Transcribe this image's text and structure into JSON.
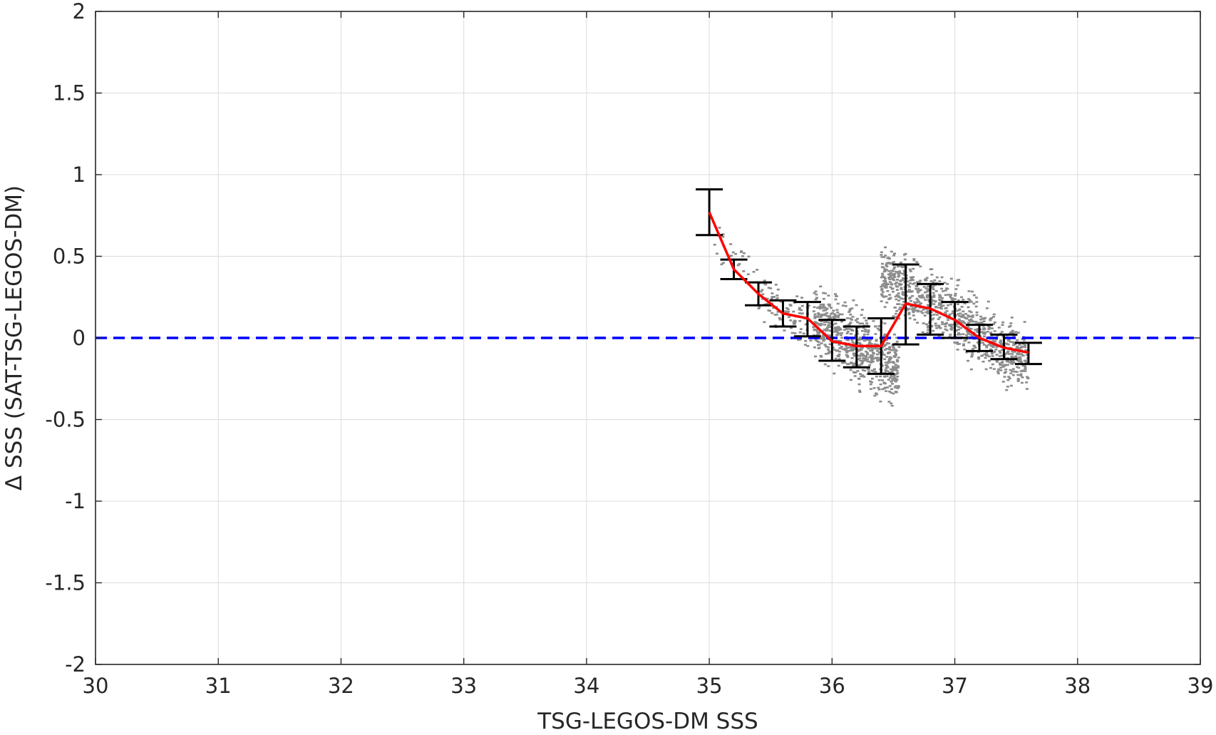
{
  "chart_data": {
    "type": "scatter",
    "xlabel": "TSG-LEGOS-DM SSS",
    "ylabel": "Δ SSS (SAT-TSG-LEGOS-DM)",
    "xlim": [
      30,
      39
    ],
    "ylim": [
      -2,
      2
    ],
    "xticks": [
      "30",
      "31",
      "32",
      "33",
      "34",
      "35",
      "36",
      "37",
      "38",
      "39"
    ],
    "yticks": [
      "2",
      "1.5",
      "1",
      "0.5",
      "0",
      "-0.5",
      "-1",
      "-1.5",
      "-2"
    ],
    "grid": true,
    "reference_line": {
      "y": 0,
      "style": "dashed",
      "color": "#0000ff"
    },
    "colors": {
      "scatter": "#8c8c8c",
      "mean_line": "#ff0000",
      "error_bars": "#000000",
      "reference": "#0000ff",
      "grid": "#dcdcdc"
    },
    "scatter_clusters": [
      {
        "x_range": [
          35.0,
          35.4
        ],
        "y_center": 0.5,
        "slope": -0.8,
        "spread": 0.08,
        "count": 25
      },
      {
        "x_range": [
          35.4,
          35.9
        ],
        "y_center": 0.15,
        "slope": -0.9,
        "spread": 0.08,
        "count": 110
      },
      {
        "x_range": [
          35.85,
          36.55
        ],
        "y_center": -0.05,
        "slope": -0.9,
        "spread": 0.13,
        "count": 650
      },
      {
        "x_range": [
          36.4,
          37.6
        ],
        "y_center": 0.12,
        "slope": -0.9,
        "spread": 0.12,
        "count": 900
      }
    ],
    "series": [
      {
        "x": [
          35.0,
          35.2,
          35.4,
          35.6,
          35.8,
          36.0,
          36.2,
          36.4,
          36.6,
          36.8,
          37.0,
          37.2,
          37.4,
          37.6
        ],
        "mean": [
          0.77,
          0.42,
          0.27,
          0.15,
          0.12,
          -0.02,
          -0.05,
          -0.05,
          0.21,
          0.18,
          0.11,
          0.0,
          -0.06,
          -0.09
        ],
        "lower": [
          0.63,
          0.36,
          0.2,
          0.07,
          0.01,
          -0.14,
          -0.18,
          -0.22,
          -0.04,
          0.02,
          0.0,
          -0.08,
          -0.13,
          -0.16
        ],
        "upper": [
          0.91,
          0.48,
          0.34,
          0.23,
          0.22,
          0.11,
          0.07,
          0.12,
          0.45,
          0.33,
          0.22,
          0.08,
          0.02,
          -0.03
        ]
      }
    ]
  }
}
